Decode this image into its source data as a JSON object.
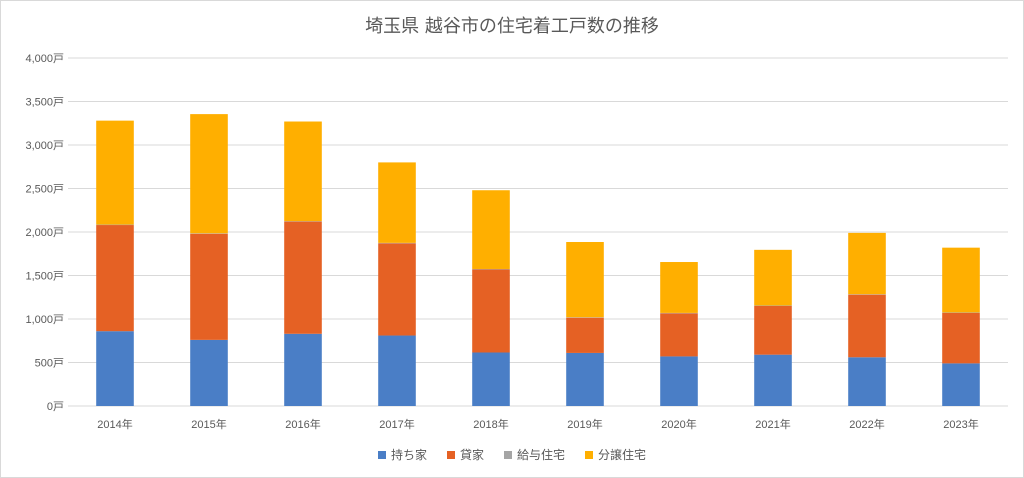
{
  "chart_data": {
    "type": "bar",
    "stacked": true,
    "title": "埼玉県 越谷市の住宅着工戸数の推移",
    "categories": [
      "2014年",
      "2015年",
      "2016年",
      "2017年",
      "2018年",
      "2019年",
      "2020年",
      "2021年",
      "2022年",
      "2023年"
    ],
    "ylim": [
      0,
      4000
    ],
    "yticks": [
      0,
      500,
      1000,
      1500,
      2000,
      2500,
      3000,
      3500,
      4000
    ],
    "ytick_labels": [
      "0戸",
      "500戸",
      "1,000戸",
      "1,500戸",
      "2,000戸",
      "2,500戸",
      "3,000戸",
      "3,500戸",
      "4,000戸"
    ],
    "grid": true,
    "legend_position": "bottom",
    "series": [
      {
        "name": "持ち家",
        "color": "#4a7ec6",
        "values": [
          860,
          760,
          830,
          810,
          615,
          610,
          570,
          590,
          560,
          490
        ]
      },
      {
        "name": "貸家",
        "color": "#e56124",
        "values": [
          1220,
          1220,
          1290,
          1060,
          955,
          405,
          495,
          560,
          720,
          580
        ]
      },
      {
        "name": "給与住宅",
        "color": "#a5a5a5",
        "values": [
          5,
          5,
          5,
          5,
          5,
          5,
          5,
          5,
          5,
          5
        ]
      },
      {
        "name": "分譲住宅",
        "color": "#ffaf00",
        "values": [
          1195,
          1370,
          1145,
          925,
          905,
          865,
          585,
          640,
          705,
          745
        ]
      }
    ]
  }
}
